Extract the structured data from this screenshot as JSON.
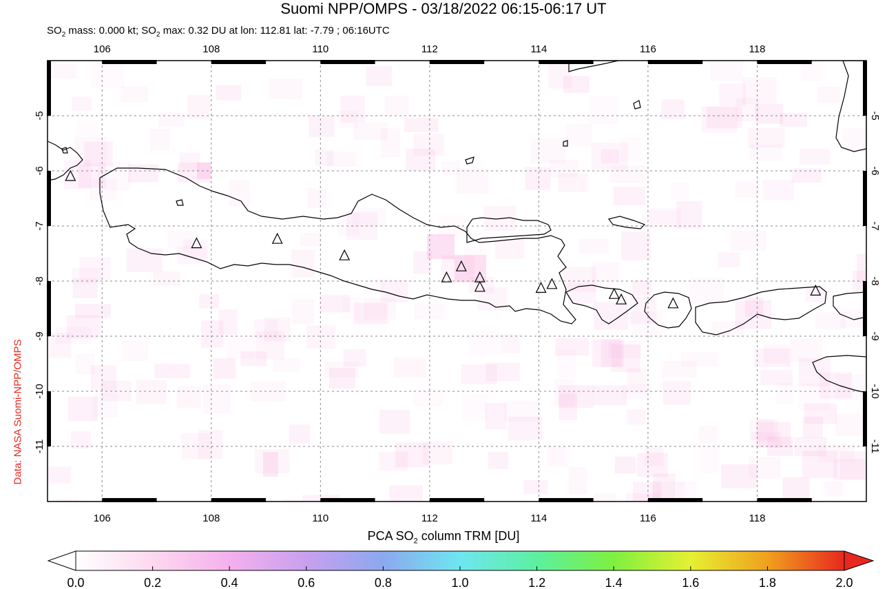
{
  "title": "Suomi NPP/OMPS - 03/18/2022 06:15-06:17 UT",
  "subtitle": {
    "so2_label": "SO",
    "so2_sub": "2",
    "mass_text": " mass: 0.000 kt; SO",
    "max_sub": "2",
    "max_text": " max: 0.32 DU at lon: 112.81 lat: -7.79 ; 06:16UTC"
  },
  "credit": "Data: NASA Suomi-NPP/OMPS",
  "colorbar": {
    "title_pre": "PCA SO",
    "title_sub": "2",
    "title_post": " column TRM [DU]",
    "ticks": [
      "0.0",
      "0.2",
      "0.4",
      "0.6",
      "0.8",
      "1.0",
      "1.2",
      "1.4",
      "1.6",
      "1.8",
      "2.0"
    ],
    "colors": [
      "#ffffff",
      "#fdd8f0",
      "#f4b0ee",
      "#c8a0ee",
      "#8ca8f0",
      "#6ee6f0",
      "#5cf0a0",
      "#7ef040",
      "#e6f032",
      "#f0a01e",
      "#e8281e"
    ]
  },
  "map": {
    "lon_range": [
      105.0,
      120.0
    ],
    "lat_range": [
      -12.0,
      -4.0
    ],
    "lon_ticks": [
      "106",
      "108",
      "110",
      "112",
      "114",
      "116",
      "118"
    ],
    "lat_ticks": [
      "-5",
      "-6",
      "-7",
      "-8",
      "-9",
      "-10",
      "-11"
    ],
    "volcanoes": [
      {
        "lon": 105.42,
        "lat": -6.1
      },
      {
        "lon": 107.73,
        "lat": -7.32
      },
      {
        "lon": 109.21,
        "lat": -7.24
      },
      {
        "lon": 110.44,
        "lat": -7.54
      },
      {
        "lon": 112.31,
        "lat": -7.94
      },
      {
        "lon": 112.58,
        "lat": -7.74
      },
      {
        "lon": 112.92,
        "lat": -7.94
      },
      {
        "lon": 112.92,
        "lat": -8.11
      },
      {
        "lon": 114.04,
        "lat": -8.13
      },
      {
        "lon": 114.24,
        "lat": -8.06
      },
      {
        "lon": 115.38,
        "lat": -8.24
      },
      {
        "lon": 115.51,
        "lat": -8.34
      },
      {
        "lon": 116.46,
        "lat": -8.41
      },
      {
        "lon": 119.07,
        "lat": -8.18
      }
    ]
  }
}
